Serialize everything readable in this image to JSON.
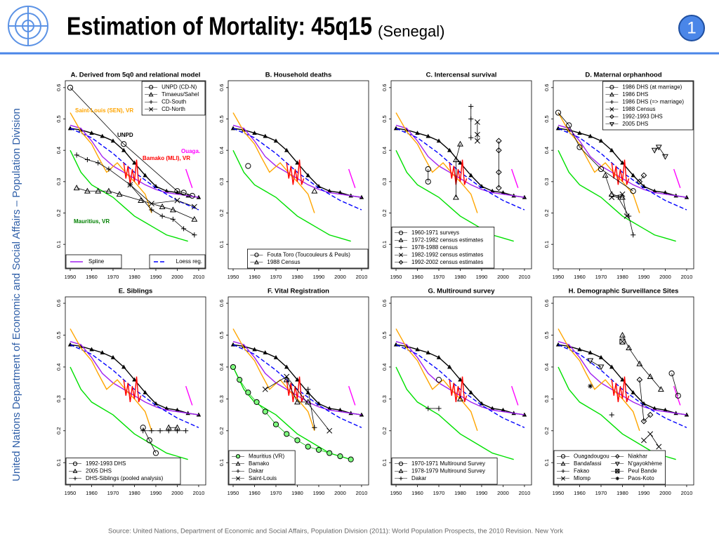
{
  "header": {
    "title": "Estimation of Mortality: 45q15",
    "subtitle": "(Senegal)",
    "slide_number": "1"
  },
  "sidebar": "United Nations Department of Economic and Social Affairs – Population Division",
  "footer": "Source: United Nations, Department of Economic and Social Affairs, Population Division (2011): World Population Prospects, the 2010 Revision. New York",
  "reference_series": [
    {
      "name": "UNPD",
      "color": "#000000",
      "marker": "triangle",
      "dash": false,
      "x": [
        1950,
        1955,
        1960,
        1965,
        1970,
        1975,
        1980,
        1985,
        1990,
        1995,
        2000,
        2005,
        2010
      ],
      "values": [
        0.47,
        0.465,
        0.455,
        0.445,
        0.43,
        0.4,
        0.36,
        0.32,
        0.285,
        0.27,
        0.265,
        0.255,
        0.25
      ]
    },
    {
      "name": "Spline",
      "color": "#a020f0",
      "marker": null,
      "dash": false,
      "x": [
        1950,
        1955,
        1960,
        1965,
        1970,
        1975,
        1980,
        1985,
        1990,
        1995,
        2000,
        2005,
        2010
      ],
      "values": [
        0.48,
        0.47,
        0.43,
        0.38,
        0.35,
        0.33,
        0.31,
        0.29,
        0.275,
        0.265,
        0.26,
        0.255,
        0.25
      ]
    },
    {
      "name": "Loess reg.",
      "color": "#0000ff",
      "marker": null,
      "dash": true,
      "x": [
        1950,
        1960,
        1970,
        1980,
        1990,
        2000,
        2010
      ],
      "values": [
        0.47,
        0.44,
        0.39,
        0.33,
        0.28,
        0.24,
        0.21
      ]
    },
    {
      "name": "Mauritius, VR",
      "color": "#00e000",
      "marker": null,
      "dash": false,
      "x": [
        1950,
        1955,
        1960,
        1965,
        1970,
        1975,
        1980,
        1985,
        1990,
        1995,
        2000,
        2005
      ],
      "values": [
        0.4,
        0.33,
        0.29,
        0.27,
        0.25,
        0.22,
        0.19,
        0.17,
        0.15,
        0.13,
        0.12,
        0.11
      ]
    },
    {
      "name": "Saint-Louis (SEN), VR",
      "color": "#ffa500",
      "marker": null,
      "dash": false,
      "x": [
        1950,
        1955,
        1960,
        1963,
        1967,
        1972,
        1977,
        1980,
        1985,
        1988
      ],
      "values": [
        0.52,
        0.46,
        0.42,
        0.38,
        0.33,
        0.36,
        0.32,
        0.3,
        0.26,
        0.2
      ]
    },
    {
      "name": "Bamako (MLI), VR",
      "color": "#ff0000",
      "marker": null,
      "dash": false,
      "x": [
        1975,
        1976,
        1977,
        1978,
        1979,
        1980,
        1981,
        1982,
        1983
      ],
      "values": [
        0.36,
        0.31,
        0.35,
        0.29,
        0.34,
        0.3,
        0.37,
        0.29,
        0.31
      ]
    },
    {
      "name": "Ouaga.",
      "color": "#ff00ff",
      "marker": null,
      "dash": false,
      "x": [
        2004,
        2007
      ],
      "values": [
        0.34,
        0.28
      ]
    }
  ],
  "chart_data": [
    {
      "type": "line",
      "title": "A. Derived from 5q0 and relational model",
      "legend": "top-right",
      "legend_columns": 1,
      "xlim": [
        1947.7,
        2013.3
      ],
      "ylim": [
        0.022,
        0.622
      ],
      "xticks": [
        1950,
        1960,
        1970,
        1980,
        1990,
        2000,
        2010
      ],
      "yticks": [
        0.1,
        0.2,
        0.3,
        0.4,
        0.5,
        0.6
      ],
      "series": [
        {
          "name": "UNPD (CD-N)",
          "color": "#000000",
          "marker": "circle",
          "x": [
            1950,
            1975,
            2000,
            2003,
            2007
          ],
          "values": [
            0.6,
            0.42,
            0.27,
            0.265,
            0.255
          ]
        },
        {
          "name": "Timaeus/Sahel",
          "color": "#000000",
          "marker": "triangle",
          "x": [
            1953,
            1958,
            1963,
            1968,
            1973,
            1983,
            1993,
            1998,
            2008
          ],
          "values": [
            0.28,
            0.27,
            0.27,
            0.27,
            0.26,
            0.24,
            0.22,
            0.21,
            0.18
          ]
        },
        {
          "name": "CD-South",
          "color": "#000000",
          "marker": "plus",
          "x": [
            1953,
            1958,
            1963,
            1968,
            1978,
            1988,
            1993,
            1998,
            2003,
            2008
          ],
          "values": [
            0.385,
            0.37,
            0.36,
            0.34,
            0.29,
            0.21,
            0.19,
            0.18,
            0.15,
            0.13
          ]
        },
        {
          "name": "CD-North",
          "color": "#000000",
          "marker": "x",
          "x": [
            1978,
            1988,
            2000,
            2008
          ],
          "values": [
            0.29,
            0.23,
            0.24,
            0.22
          ]
        }
      ]
    },
    {
      "type": "line",
      "title": "B. Household deaths",
      "legend": "bottom-right",
      "legend_columns": 1,
      "xlim": [
        1947.7,
        2013.3
      ],
      "ylim": [
        0.022,
        0.622
      ],
      "xticks": [
        1950,
        1960,
        1970,
        1980,
        1990,
        2000,
        2010
      ],
      "yticks": [
        0.1,
        0.2,
        0.3,
        0.4,
        0.5,
        0.6
      ],
      "series": [
        {
          "name": "Fouta Toro (Toucouleurs & Peuls)",
          "color": "#000000",
          "marker": "circle",
          "x": [
            1957
          ],
          "values": [
            0.35
          ]
        },
        {
          "name": "1988 Census",
          "color": "#000000",
          "marker": "triangle",
          "x": [
            1988
          ],
          "values": [
            0.27
          ]
        }
      ]
    },
    {
      "type": "line",
      "title": "C. Intercensal survival",
      "legend": "bottom-left",
      "legend_columns": 1,
      "xlim": [
        1947.7,
        2013.3
      ],
      "ylim": [
        0.022,
        0.622
      ],
      "xticks": [
        1950,
        1960,
        1970,
        1980,
        1990,
        2000,
        2010
      ],
      "yticks": [
        0.1,
        0.2,
        0.3,
        0.4,
        0.5,
        0.6
      ],
      "series": [
        {
          "name": "1960-1971 surveys",
          "color": "#000000",
          "marker": "circle",
          "x": [
            1965,
            1965
          ],
          "values": [
            0.34,
            0.3
          ]
        },
        {
          "name": "1972-1982 census estimates",
          "color": "#000000",
          "marker": "triangle",
          "x": [
            1978,
            1978,
            1980
          ],
          "values": [
            0.25,
            0.37,
            0.42
          ]
        },
        {
          "name": "1978-1988 census",
          "color": "#000000",
          "marker": "plus",
          "x": [
            1985,
            1985,
            1985
          ],
          "values": [
            0.54,
            0.5,
            0.44
          ]
        },
        {
          "name": "1982-1992 census estimates",
          "color": "#000000",
          "marker": "x",
          "x": [
            1988,
            1988,
            1988
          ],
          "values": [
            0.49,
            0.45,
            0.43
          ]
        },
        {
          "name": "1992-2002 census estimates",
          "color": "#000000",
          "marker": "diamond",
          "x": [
            1998,
            1998,
            1998,
            1998
          ],
          "values": [
            0.43,
            0.4,
            0.33,
            0.28
          ]
        }
      ]
    },
    {
      "type": "line",
      "title": "D. Maternal orphanhood",
      "legend": "top-right",
      "legend_columns": 1,
      "xlim": [
        1947.7,
        2013.3
      ],
      "ylim": [
        0.022,
        0.622
      ],
      "xticks": [
        1950,
        1960,
        1970,
        1980,
        1990,
        2000,
        2010
      ],
      "yticks": [
        0.1,
        0.2,
        0.3,
        0.4,
        0.5,
        0.6
      ],
      "series": [
        {
          "name": "1986 DHS (at marriage)",
          "color": "#000000",
          "marker": "circle",
          "x": [
            1950,
            1955,
            1960,
            1970,
            1985
          ],
          "values": [
            0.52,
            0.48,
            0.41,
            0.34,
            0.27
          ]
        },
        {
          "name": "1986 DHS",
          "color": "#000000",
          "marker": "triangle",
          "x": [
            1972,
            1975,
            1980
          ],
          "values": [
            0.32,
            0.26,
            0.25
          ]
        },
        {
          "name": "1986 DHS (=> marriage)",
          "color": "#000000",
          "marker": "plus",
          "x": [
            1978,
            1983,
            1985
          ],
          "values": [
            0.25,
            0.19,
            0.13
          ]
        },
        {
          "name": "1988 Census",
          "color": "#000000",
          "marker": "x",
          "x": [
            1975,
            1980,
            1982
          ],
          "values": [
            0.25,
            0.26,
            0.19
          ]
        },
        {
          "name": "1992-1993 DHS",
          "color": "#000000",
          "marker": "diamond",
          "x": [
            1988,
            1990
          ],
          "values": [
            0.3,
            0.32
          ]
        },
        {
          "name": "2005 DHS",
          "color": "#000000",
          "marker": "tri-down",
          "x": [
            1995,
            1997,
            2000
          ],
          "values": [
            0.4,
            0.41,
            0.38
          ]
        }
      ]
    },
    {
      "type": "line",
      "title": "E. Siblings",
      "legend": "bottom-left",
      "legend_columns": 1,
      "xlim": [
        1947.7,
        2013.3
      ],
      "ylim": [
        0.03,
        0.62
      ],
      "xticks": [
        1950,
        1960,
        1970,
        1980,
        1990,
        2000,
        2010
      ],
      "yticks": [
        0.1,
        0.2,
        0.3,
        0.4,
        0.5,
        0.6
      ],
      "series": [
        {
          "name": "1992-1993 DHS",
          "color": "#000000",
          "marker": "circle",
          "x": [
            1984,
            1987,
            1990
          ],
          "values": [
            0.21,
            0.17,
            0.13
          ]
        },
        {
          "name": "2005 DHS",
          "color": "#000000",
          "marker": "triangle",
          "x": [
            1996,
            2000
          ],
          "values": [
            0.21,
            0.21
          ]
        },
        {
          "name": "DHS-Siblings (pooled analysis)",
          "color": "#000000",
          "marker": "plus",
          "x": [
            1984,
            1988,
            1992,
            1996,
            2000,
            2004
          ],
          "values": [
            0.2,
            0.2,
            0.2,
            0.2,
            0.2,
            0.2
          ]
        }
      ]
    },
    {
      "type": "line",
      "title": "F. Vital Registration",
      "legend": "bottom-left",
      "legend_columns": 1,
      "xlim": [
        1947.7,
        2013.3
      ],
      "ylim": [
        0.03,
        0.62
      ],
      "xticks": [
        1950,
        1960,
        1970,
        1980,
        1990,
        2000,
        2010
      ],
      "yticks": [
        0.1,
        0.2,
        0.3,
        0.4,
        0.5,
        0.6
      ],
      "series": [
        {
          "name": "Mauritius (VR)",
          "color": "#00c000",
          "marker": "circle",
          "x": [
            1950,
            1953,
            1957,
            1961,
            1965,
            1970,
            1975,
            1980,
            1985,
            1990,
            1995,
            2000,
            2005
          ],
          "values": [
            0.4,
            0.36,
            0.32,
            0.29,
            0.26,
            0.22,
            0.19,
            0.17,
            0.15,
            0.14,
            0.13,
            0.12,
            0.11
          ]
        },
        {
          "name": "Bamako",
          "color": "#000000",
          "marker": "triangle",
          "x": [
            1975,
            1980,
            1985
          ],
          "values": [
            0.36,
            0.29,
            0.29
          ]
        },
        {
          "name": "Dakar",
          "color": "#000000",
          "marker": "plus",
          "x": [
            1985,
            1988
          ],
          "values": [
            0.33,
            0.21
          ]
        },
        {
          "name": "Saint-Louis",
          "color": "#000000",
          "marker": "x",
          "x": [
            1965,
            1975,
            1995
          ],
          "values": [
            0.33,
            0.37,
            0.2
          ]
        }
      ]
    },
    {
      "type": "line",
      "title": "G. Multiround survey",
      "legend": "bottom-left",
      "legend_columns": 1,
      "xlim": [
        1947.7,
        2013.3
      ],
      "ylim": [
        0.03,
        0.62
      ],
      "xticks": [
        1950,
        1960,
        1970,
        1980,
        1990,
        2000,
        2010
      ],
      "yticks": [
        0.1,
        0.2,
        0.3,
        0.4,
        0.5,
        0.6
      ],
      "series": [
        {
          "name": "1970-1971 Multiround Survey",
          "color": "#000000",
          "marker": "circle",
          "x": [
            1970
          ],
          "values": [
            0.36
          ]
        },
        {
          "name": "1978-1979 Multiround Survey",
          "color": "#000000",
          "marker": "triangle",
          "x": [
            1980
          ],
          "values": [
            0.3
          ]
        },
        {
          "name": "Dakar",
          "color": "#000000",
          "marker": "plus",
          "x": [
            1965,
            1970
          ],
          "values": [
            0.27,
            0.27
          ]
        }
      ]
    },
    {
      "type": "line",
      "title": "H. Demographic Surveillance Sites",
      "legend": "bottom-left",
      "legend_columns": 2,
      "xlim": [
        1947.7,
        2013.3
      ],
      "ylim": [
        0.03,
        0.62
      ],
      "xticks": [
        1950,
        1960,
        1970,
        1980,
        1990,
        2000,
        2010
      ],
      "yticks": [
        0.1,
        0.2,
        0.3,
        0.4,
        0.5,
        0.6
      ],
      "series": [
        {
          "name": "Ouagadougou",
          "color": "#000000",
          "marker": "circle",
          "x": [
            2003,
            2006
          ],
          "values": [
            0.38,
            0.31
          ]
        },
        {
          "name": "Bandafassi",
          "color": "#000000",
          "marker": "triangle",
          "x": [
            1980,
            1983,
            1988,
            1993,
            1998
          ],
          "values": [
            0.5,
            0.46,
            0.41,
            0.37,
            0.33
          ]
        },
        {
          "name": "Fakao",
          "color": "#000000",
          "marker": "plus",
          "x": [
            1975
          ],
          "values": [
            0.25
          ]
        },
        {
          "name": "Mlomp",
          "color": "#000000",
          "marker": "x",
          "x": [
            1990,
            1993,
            1997
          ],
          "values": [
            0.17,
            0.19,
            0.15
          ]
        },
        {
          "name": "Niakhar",
          "color": "#000000",
          "marker": "diamond",
          "x": [
            1988,
            1990,
            1993
          ],
          "values": [
            0.36,
            0.23,
            0.25
          ]
        },
        {
          "name": "N'gayokhème",
          "color": "#000000",
          "marker": "tri-down",
          "x": [
            1965,
            1970
          ],
          "values": [
            0.42,
            0.4
          ]
        },
        {
          "name": "Peul Bande",
          "color": "#000000",
          "marker": "square-x",
          "x": [
            1980
          ],
          "values": [
            0.48
          ]
        },
        {
          "name": "Paos-Koto",
          "color": "#000000",
          "marker": "asterisk",
          "x": [
            1965
          ],
          "values": [
            0.34
          ]
        }
      ]
    }
  ]
}
